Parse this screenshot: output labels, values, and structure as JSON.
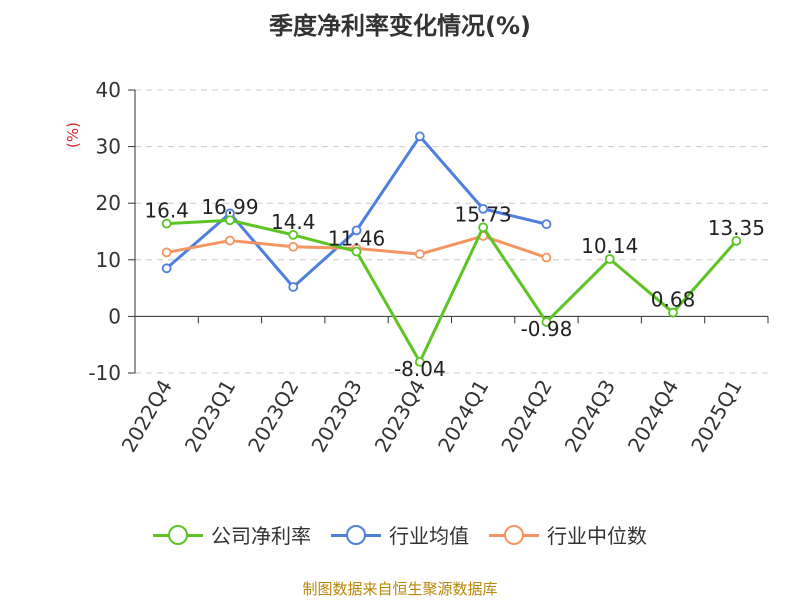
{
  "chart_data": {
    "type": "line",
    "title": "季度净利率变化情况(%)",
    "ylabel": "(%)",
    "xlabel": "",
    "categories": [
      "2022Q4",
      "2023Q1",
      "2023Q2",
      "2023Q3",
      "2023Q4",
      "2024Q1",
      "2024Q2",
      "2024Q3",
      "2024Q4",
      "2025Q1"
    ],
    "ylim": [
      -10,
      40
    ],
    "yticks": [
      -10,
      0,
      10,
      20,
      30,
      40
    ],
    "grid": true,
    "legend_position": "bottom",
    "series": [
      {
        "name": "公司净利率",
        "color": "#5cc425",
        "values": [
          16.4,
          16.99,
          14.4,
          11.46,
          -8.04,
          15.73,
          -0.98,
          10.14,
          0.68,
          13.35
        ],
        "labels": [
          "16.4",
          "16.99",
          "14.4",
          "11.46",
          "-8.04",
          "15.73",
          "-0.98",
          "10.14",
          "0.68",
          "13.35"
        ]
      },
      {
        "name": "行业均值",
        "color": "#4e7fdd",
        "values": [
          8.5,
          18.2,
          5.2,
          15.2,
          31.8,
          19.0,
          16.3,
          null,
          null,
          null
        ]
      },
      {
        "name": "行业中位数",
        "color": "#f59563",
        "values": [
          11.3,
          13.4,
          12.3,
          12.0,
          11.0,
          14.2,
          10.4,
          null,
          null,
          null
        ]
      }
    ]
  },
  "footer": "制图数据来自恒生聚源数据库"
}
